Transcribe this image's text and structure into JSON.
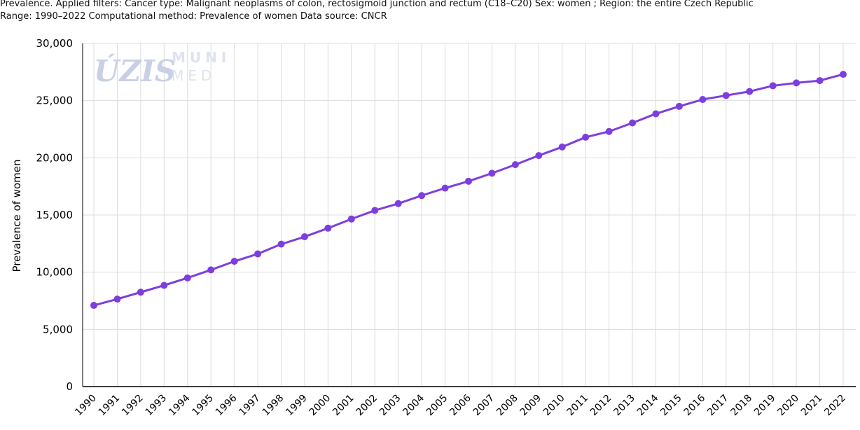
{
  "header": {
    "line1": "Prevalence. Applied filters: Cancer type: Malignant neoplasms of colon, rectosigmoid junction and rectum (C18–C20) Sex: women ; Region: the entire Czech Republic",
    "line2": "Range: 1990–2022 Computational method: Prevalence of women Data source: CNCR"
  },
  "watermark": {
    "logo1": "ÚZIS",
    "logo2_top": "MUNI",
    "logo2_bottom": "MED"
  },
  "colors": {
    "series": "#7d3ee0",
    "grid": "#dcdcdc",
    "axis": "#000000"
  },
  "chart_data": {
    "type": "line",
    "title": "",
    "xlabel": "",
    "ylabel": "Prevalence of women",
    "ylim": [
      0,
      30000
    ],
    "yticks": [
      0,
      5000,
      10000,
      15000,
      20000,
      25000,
      30000
    ],
    "ytick_labels": [
      "0",
      "5,000",
      "10,000",
      "15,000",
      "20,000",
      "25,000",
      "30,000"
    ],
    "grid": true,
    "legend": "none",
    "x": [
      "1990",
      "1991",
      "1992",
      "1993",
      "1994",
      "1995",
      "1996",
      "1997",
      "1998",
      "1999",
      "2000",
      "2001",
      "2002",
      "2003",
      "2004",
      "2005",
      "2006",
      "2007",
      "2008",
      "2009",
      "2010",
      "2011",
      "2012",
      "2013",
      "2014",
      "2015",
      "2016",
      "2017",
      "2018",
      "2019",
      "2020",
      "2021",
      "2022"
    ],
    "series": [
      {
        "values": [
          7100,
          7650,
          8250,
          8850,
          9500,
          10200,
          10950,
          11600,
          12450,
          13100,
          13850,
          14650,
          15400,
          16000,
          16700,
          17350,
          17950,
          18650,
          19400,
          20200,
          20950,
          21800,
          22300,
          23050,
          23850,
          24500,
          25100,
          25450,
          25800,
          26300,
          26550,
          26750,
          27300
        ]
      }
    ]
  }
}
